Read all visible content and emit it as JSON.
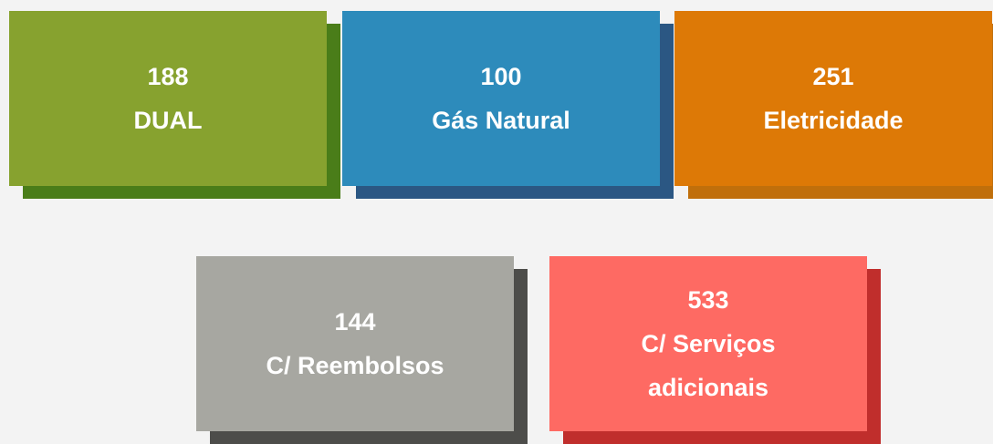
{
  "cards": [
    {
      "value": 188,
      "label": "DUAL",
      "color": "#87a22f",
      "shadow": "#4a7d19"
    },
    {
      "value": 100,
      "label": "Gás Natural",
      "color": "#2d8bbb",
      "shadow": "#2b5783"
    },
    {
      "value": 251,
      "label": "Eletricidade",
      "color": "#dd7906",
      "shadow": "#c06f0b"
    },
    {
      "value": 144,
      "label": "C/ Reembolsos",
      "color": "#a7a7a1",
      "shadow": "#4d4d4a"
    },
    {
      "value": 533,
      "label": "C/ Serviços adicionais",
      "color": "#fe6a63",
      "shadow": "#c02e2c"
    }
  ]
}
